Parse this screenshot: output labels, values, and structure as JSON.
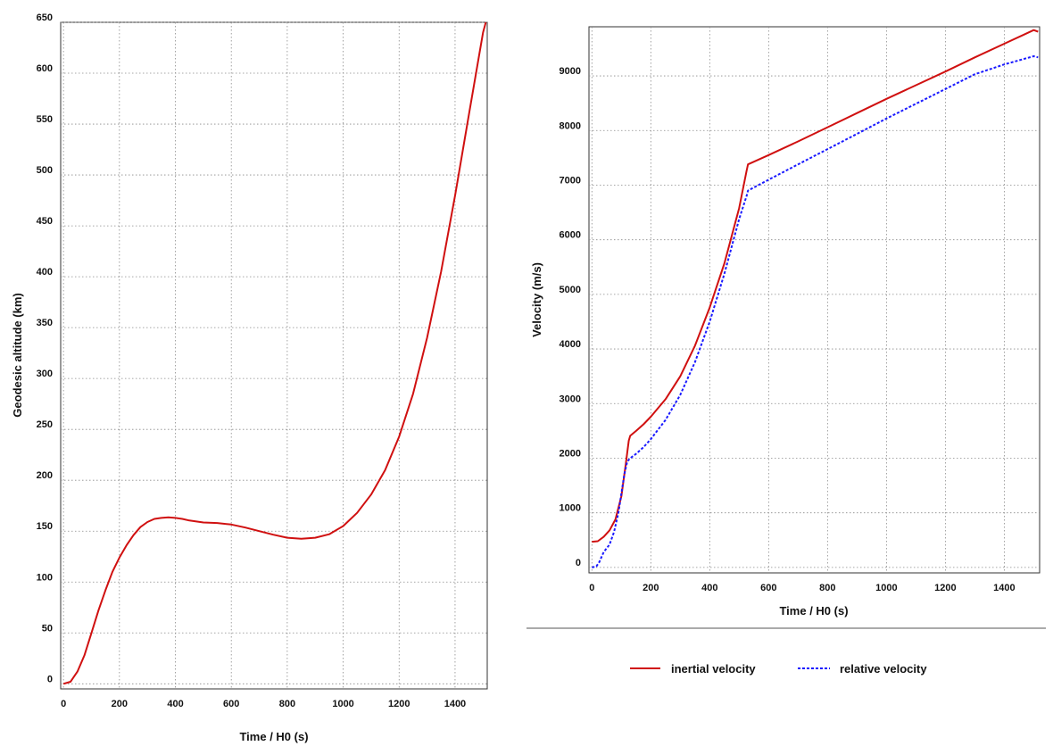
{
  "chart_data": [
    {
      "type": "line",
      "title": "",
      "xlabel": "Time / H0 (s)",
      "ylabel": "Geodesic altitude (km)",
      "xlim": [
        -10,
        1515
      ],
      "ylim": [
        -5,
        650
      ],
      "xticks": [
        0,
        200,
        400,
        600,
        800,
        1000,
        1200,
        1400
      ],
      "yticks": [
        0,
        50,
        100,
        150,
        200,
        250,
        300,
        350,
        400,
        450,
        500,
        550,
        600,
        650
      ],
      "grid": true,
      "series": [
        {
          "color": "#d01010",
          "style": "solid",
          "x": [
            0,
            25,
            50,
            75,
            100,
            125,
            150,
            175,
            200,
            225,
            250,
            275,
            300,
            325,
            350,
            375,
            400,
            425,
            450,
            500,
            550,
            600,
            650,
            700,
            750,
            800,
            850,
            900,
            950,
            1000,
            1050,
            1100,
            1150,
            1200,
            1250,
            1300,
            1350,
            1400,
            1450,
            1500,
            1510
          ],
          "y": [
            0,
            2,
            12,
            28,
            50,
            72,
            92,
            110,
            124,
            136,
            146,
            154,
            159,
            162,
            163,
            163.5,
            163,
            162,
            160.5,
            158.5,
            158,
            156.5,
            153.5,
            150,
            146.5,
            143.5,
            142.5,
            143.5,
            147,
            155,
            168,
            186,
            210,
            243,
            285,
            340,
            405,
            480,
            560,
            640,
            650
          ]
        }
      ]
    },
    {
      "type": "line",
      "title": "",
      "xlabel": "Time / H0 (s)",
      "ylabel": "Velocity (m/s)",
      "xlim": [
        -10,
        1520
      ],
      "ylim": [
        -100,
        9900
      ],
      "xticks": [
        0,
        200,
        400,
        600,
        800,
        1000,
        1200,
        1400
      ],
      "yticks": [
        0,
        1000,
        2000,
        3000,
        4000,
        5000,
        6000,
        7000,
        8000,
        9000
      ],
      "grid": true,
      "legend": "bottom",
      "series": [
        {
          "name": "inertial velocity",
          "color": "#d01010",
          "style": "solid",
          "x": [
            0,
            20,
            40,
            60,
            80,
            100,
            115,
            125,
            130,
            150,
            175,
            200,
            250,
            300,
            350,
            400,
            450,
            500,
            525,
            530,
            600,
            700,
            800,
            900,
            1000,
            1100,
            1200,
            1300,
            1400,
            1500,
            1515
          ],
          "y": [
            470,
            480,
            560,
            680,
            880,
            1300,
            1900,
            2320,
            2410,
            2500,
            2620,
            2760,
            3080,
            3500,
            4060,
            4760,
            5570,
            6580,
            7260,
            7380,
            7550,
            7800,
            8060,
            8320,
            8580,
            8830,
            9080,
            9340,
            9590,
            9840,
            9810
          ]
        },
        {
          "name": "relative velocity",
          "color": "#1a1aff",
          "style": "dashed",
          "x": [
            0,
            15,
            25,
            40,
            60,
            75,
            90,
            100,
            110,
            120,
            130,
            150,
            175,
            200,
            250,
            300,
            350,
            400,
            450,
            500,
            525,
            530,
            600,
            700,
            800,
            900,
            1000,
            1100,
            1200,
            1300,
            1400,
            1500,
            1515
          ],
          "y": [
            0,
            20,
            100,
            280,
            420,
            650,
            1000,
            1350,
            1700,
            1940,
            2000,
            2080,
            2200,
            2350,
            2700,
            3160,
            3760,
            4500,
            5380,
            6380,
            6800,
            6900,
            7100,
            7380,
            7660,
            7940,
            8220,
            8490,
            8760,
            9030,
            9210,
            9360,
            9340
          ]
        }
      ]
    }
  ]
}
